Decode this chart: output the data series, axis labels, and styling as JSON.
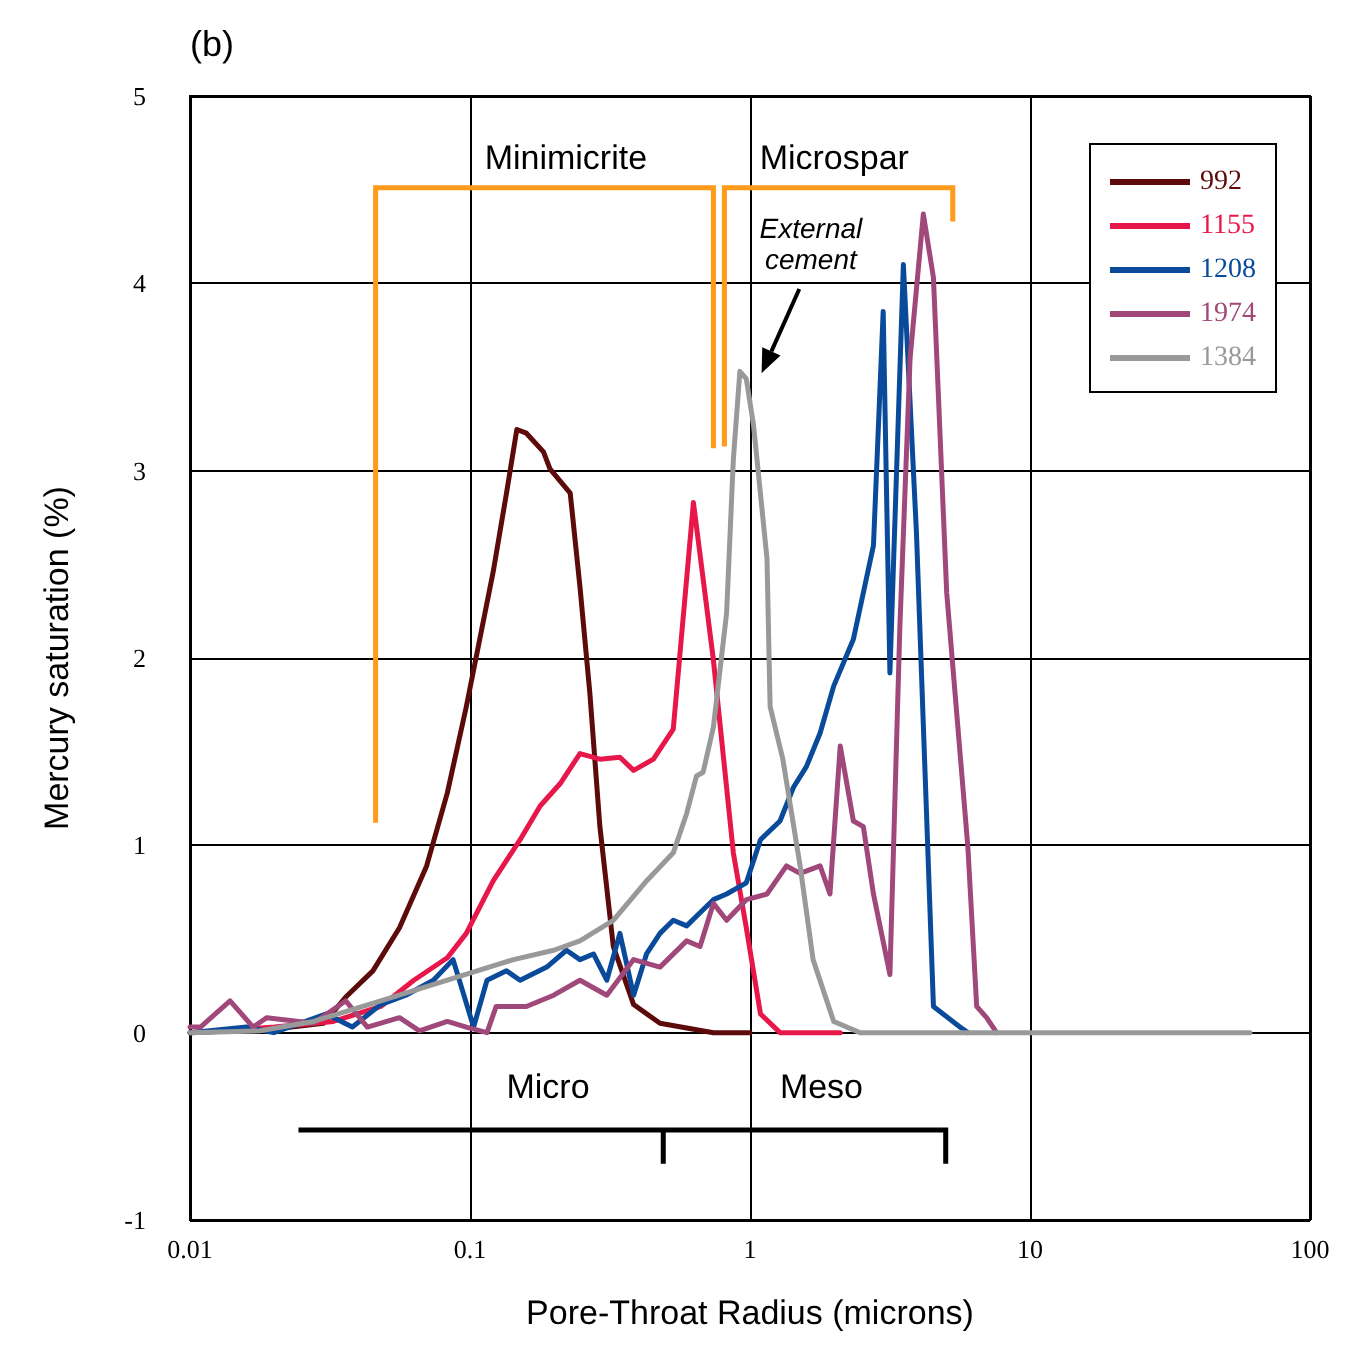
{
  "chart_data": {
    "type": "line",
    "title": "(b)",
    "xlabel": "Pore-Throat Radius (microns)",
    "ylabel": "Mercury saturation (%)",
    "xlim": [
      0.01,
      100
    ],
    "ylim": [
      -1,
      5
    ],
    "xticks": [
      0.01,
      0.1,
      1,
      10,
      100
    ],
    "yticks": [
      -1,
      0,
      1,
      2,
      3,
      4,
      5
    ],
    "log": "x",
    "grid": true,
    "legend": "top right",
    "marker": "none",
    "line_style": "solid",
    "annotations": [
      "Minimicrite",
      "Microspar",
      "External cement",
      "Micro",
      "Meso"
    ],
    "series": [
      {
        "name": "992",
        "color": "#5c0a0a",
        "x": [
          0.01,
          0.02,
          0.03,
          0.036,
          0.045,
          0.056,
          0.07,
          0.083,
          0.097,
          0.121,
          0.135,
          0.147,
          0.159,
          0.183,
          0.193,
          0.228,
          0.247,
          0.268,
          0.291,
          0.325,
          0.384,
          0.477,
          0.74,
          1.0
        ],
        "values": [
          0,
          0.02,
          0.05,
          0.19,
          0.33,
          0.56,
          0.89,
          1.28,
          1.74,
          2.46,
          2.88,
          3.22,
          3.2,
          3.1,
          3.01,
          2.88,
          2.38,
          1.81,
          1.1,
          0.46,
          0.15,
          0.05,
          0,
          0
        ]
      },
      {
        "name": "1155",
        "color": "#e8174a",
        "x": [
          0.01,
          0.02,
          0.0325,
          0.048,
          0.063,
          0.083,
          0.097,
          0.121,
          0.151,
          0.178,
          0.21,
          0.247,
          0.291,
          0.343,
          0.384,
          0.452,
          0.532,
          0.628,
          0.74,
          0.872,
          0.97,
          1.09,
          1.28,
          2.1
        ],
        "values": [
          0,
          0.03,
          0.06,
          0.14,
          0.28,
          0.4,
          0.53,
          0.81,
          1.03,
          1.21,
          1.33,
          1.49,
          1.46,
          1.47,
          1.4,
          1.46,
          1.62,
          2.83,
          1.99,
          0.96,
          0.56,
          0.1,
          0,
          0
        ]
      },
      {
        "name": "1208",
        "color": "#0a4a9a",
        "x": [
          0.01,
          0.0159,
          0.0199,
          0.0307,
          0.038,
          0.048,
          0.059,
          0.074,
          0.087,
          0.103,
          0.115,
          0.135,
          0.151,
          0.188,
          0.221,
          0.247,
          0.276,
          0.308,
          0.343,
          0.384,
          0.427,
          0.477,
          0.532,
          0.594,
          0.663,
          0.74,
          0.825,
          0.97,
          1.09,
          1.28,
          1.43,
          1.59,
          1.78,
          1.99,
          2.34,
          2.76,
          2.99,
          3.16,
          3.53,
          3.93,
          4.52,
          5.62,
          6.0
        ],
        "values": [
          0,
          0.03,
          0,
          0.1,
          0.03,
          0.15,
          0.2,
          0.28,
          0.39,
          0.03,
          0.28,
          0.33,
          0.28,
          0.35,
          0.44,
          0.39,
          0.42,
          0.28,
          0.53,
          0.2,
          0.42,
          0.53,
          0.6,
          0.57,
          0.64,
          0.71,
          0.74,
          0.8,
          1.03,
          1.13,
          1.31,
          1.42,
          1.6,
          1.85,
          2.1,
          2.6,
          3.85,
          1.92,
          4.1,
          2.67,
          0.14,
          0.03,
          0
        ]
      },
      {
        "name": "1974",
        "color": "#a0487a",
        "x": [
          0.01,
          0.0109,
          0.0139,
          0.0168,
          0.0188,
          0.0276,
          0.036,
          0.043,
          0.056,
          0.066,
          0.083,
          0.097,
          0.115,
          0.124,
          0.159,
          0.199,
          0.247,
          0.308,
          0.384,
          0.477,
          0.594,
          0.663,
          0.74,
          0.825,
          0.97,
          1.15,
          1.35,
          1.51,
          1.78,
          1.93,
          2.1,
          2.34,
          2.54,
          2.76,
          3.16,
          3.43,
          3.73,
          4.16,
          4.52,
          5.04,
          6.0,
          6.45,
          7.0,
          7.6
        ],
        "values": [
          0.03,
          0.03,
          0.17,
          0.03,
          0.08,
          0.05,
          0.17,
          0.03,
          0.08,
          0.01,
          0.06,
          0.03,
          0,
          0.14,
          0.14,
          0.2,
          0.28,
          0.2,
          0.39,
          0.35,
          0.49,
          0.46,
          0.69,
          0.6,
          0.71,
          0.74,
          0.89,
          0.85,
          0.89,
          0.74,
          1.53,
          1.13,
          1.1,
          0.74,
          0.31,
          2.17,
          3.6,
          4.37,
          4.03,
          2.35,
          0.99,
          0.14,
          0.08,
          0
        ]
      },
      {
        "name": "1384",
        "color": "#999999",
        "x": [
          0.01,
          0.0178,
          0.0276,
          0.048,
          0.083,
          0.143,
          0.199,
          0.247,
          0.325,
          0.427,
          0.532,
          0.594,
          0.644,
          0.68,
          0.74,
          0.825,
          0.872,
          0.92,
          0.97,
          1.03,
          1.15,
          1.18,
          1.31,
          1.51,
          1.68,
          1.99,
          2.47,
          61
        ],
        "values": [
          0,
          0.01,
          0.06,
          0.17,
          0.28,
          0.39,
          0.44,
          0.49,
          0.6,
          0.81,
          0.96,
          1.17,
          1.37,
          1.39,
          1.63,
          2.24,
          3.06,
          3.53,
          3.49,
          3.24,
          2.53,
          1.74,
          1.46,
          0.89,
          0.39,
          0.06,
          0,
          0
        ]
      }
    ]
  }
}
